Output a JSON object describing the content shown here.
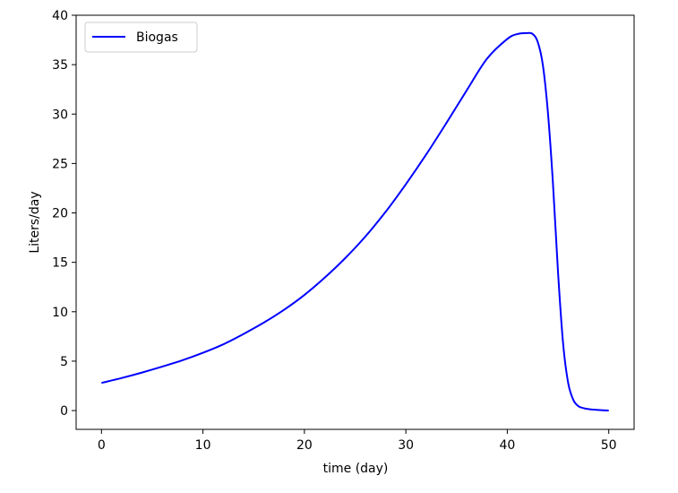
{
  "chart_data": {
    "type": "line",
    "title": "",
    "xlabel": "time (day)",
    "ylabel": "Liters/day",
    "xlim": [
      -2.5,
      52.5
    ],
    "ylim": [
      -1.9,
      40
    ],
    "xticks": [
      0,
      10,
      20,
      30,
      40,
      50
    ],
    "yticks": [
      0,
      5,
      10,
      15,
      20,
      25,
      30,
      35,
      40
    ],
    "xtick_labels": [
      "0",
      "10",
      "20",
      "30",
      "40",
      "50"
    ],
    "ytick_labels": [
      "0",
      "5",
      "10",
      "15",
      "20",
      "25",
      "30",
      "35",
      "40"
    ],
    "grid": false,
    "legend": {
      "position": "top-left",
      "entries": [
        "Biogas"
      ]
    },
    "series": [
      {
        "name": "Biogas",
        "color": "#0000ff",
        "x": [
          0,
          2,
          4,
          6,
          8,
          10,
          12,
          14,
          16,
          18,
          20,
          22,
          24,
          26,
          28,
          30,
          32,
          34,
          36,
          38,
          40,
          41,
          42,
          42.5,
          43,
          43.5,
          44,
          44.5,
          45,
          45.5,
          46,
          46.5,
          47,
          47.5,
          48,
          48.5,
          49,
          50
        ],
        "y": [
          2.8,
          3.3,
          3.85,
          4.45,
          5.1,
          5.85,
          6.7,
          7.75,
          8.9,
          10.2,
          11.7,
          13.45,
          15.4,
          17.6,
          20.1,
          22.9,
          25.9,
          29.1,
          32.4,
          35.6,
          37.6,
          38.1,
          38.2,
          38.1,
          37.3,
          35.0,
          30.2,
          23.0,
          14.0,
          6.8,
          2.8,
          1.1,
          0.45,
          0.25,
          0.15,
          0.1,
          0.06,
          0.0
        ]
      }
    ]
  }
}
